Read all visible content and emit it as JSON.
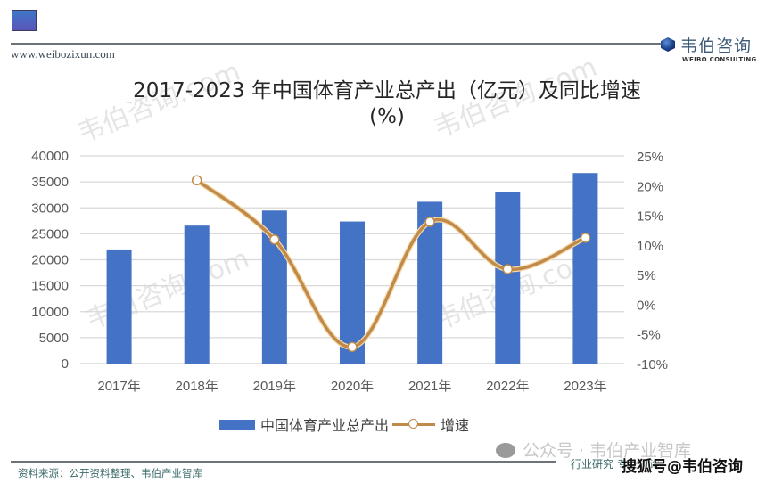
{
  "header": {
    "site_url": "www.weibozixun.com",
    "brand_cn": "韦伯咨询",
    "brand_en": "WEIBO CONSULTING"
  },
  "title": {
    "line1": "2017-2023 年中国体育产业总产出（亿元）及同比增速",
    "line2": "(%)"
  },
  "legend": {
    "bar_label": "中国体育产业总产出",
    "line_label": "增速"
  },
  "footer": {
    "source": "资料来源：公开资料整理、韦伯产业智库",
    "wechat": "公众号 · 韦伯产业智库",
    "tag": "行业研究  专业咨询",
    "sohu": "搜狐号@韦伯咨询"
  },
  "watermark": "韦伯咨询.com",
  "colors": {
    "bar": "#4472c4",
    "line": "#c08a4a",
    "grid": "#d9d9d9"
  },
  "chart_data": {
    "type": "bar",
    "title": "2017-2023 年中国体育产业总产出（亿元）及同比增速(%)",
    "categories": [
      "2017年",
      "2018年",
      "2019年",
      "2020年",
      "2021年",
      "2022年",
      "2023年"
    ],
    "series": [
      {
        "name": "中国体育产业总产出",
        "type": "bar",
        "axis": "left",
        "values": [
          21988,
          26579,
          29483,
          27372,
          31175,
          33008,
          36700
        ]
      },
      {
        "name": "增速",
        "type": "line",
        "axis": "right",
        "smooth": true,
        "unit": "%",
        "values": [
          null,
          20.9,
          10.9,
          -7.2,
          13.9,
          5.9,
          11.2
        ]
      }
    ],
    "xlabel": "",
    "ylabel": "",
    "ylim": [
      0,
      40000
    ],
    "yticks": [
      "0",
      "5000",
      "10000",
      "15000",
      "20000",
      "25000",
      "30000",
      "35000",
      "40000"
    ],
    "y2lim": [
      -10,
      25
    ],
    "y2ticks": [
      "-10%",
      "-5%",
      "0%",
      "5%",
      "10%",
      "15%",
      "20%",
      "25%"
    ],
    "grid": true,
    "legend_position": "bottom"
  }
}
